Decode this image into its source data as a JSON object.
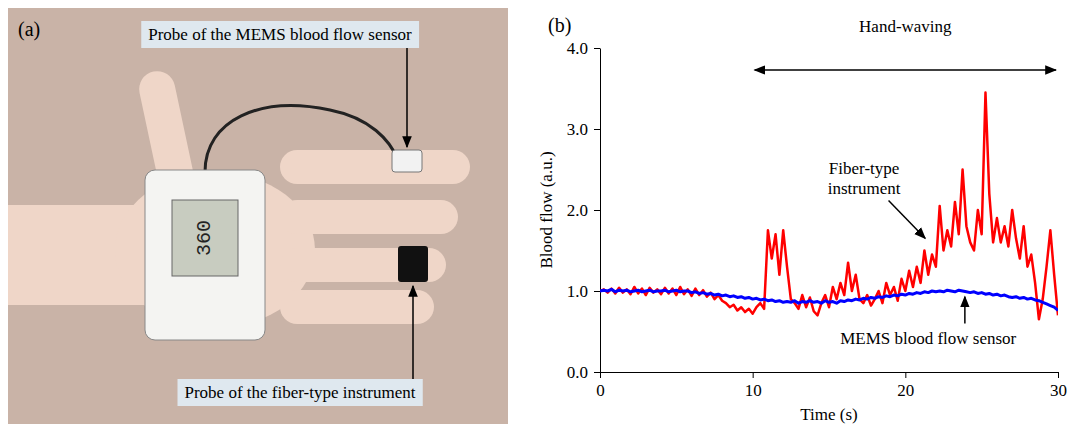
{
  "panel_a": {
    "label": "(a)",
    "display": "360",
    "callouts": [
      "Probe of the MEMS blood flow sensor",
      "Probe of the fiber-type instrument"
    ]
  },
  "chart_data": {
    "type": "line",
    "panel_label": "(b)",
    "x_label": "Time (s)",
    "y_label": "Blood flow (a.u.)",
    "xlim": [
      0,
      30
    ],
    "xticks": [
      0,
      10,
      20,
      30
    ],
    "ylim": [
      0,
      4
    ],
    "yticks": [
      {
        "value": 0,
        "label": "0.0"
      },
      {
        "value": 1,
        "label": "1.0"
      },
      {
        "value": 2,
        "label": "2.0"
      },
      {
        "value": 3,
        "label": "3.0"
      },
      {
        "value": 4,
        "label": "4.0"
      }
    ],
    "annotations": [
      {
        "text": "Hand-waving",
        "x": [
          10,
          30
        ]
      }
    ],
    "x": [
      0,
      0.25,
      0.5,
      0.75,
      1,
      1.25,
      1.5,
      1.75,
      2,
      2.25,
      2.5,
      2.75,
      3,
      3.25,
      3.5,
      3.75,
      4,
      4.25,
      4.5,
      4.75,
      5,
      5.25,
      5.5,
      5.75,
      6,
      6.25,
      6.5,
      6.75,
      7,
      7.25,
      7.5,
      7.75,
      8,
      8.25,
      8.5,
      8.75,
      9,
      9.25,
      9.5,
      9.75,
      10,
      10.25,
      10.5,
      10.75,
      11,
      11.25,
      11.5,
      11.75,
      12,
      12.25,
      12.5,
      12.75,
      13,
      13.25,
      13.5,
      13.75,
      14,
      14.25,
      14.5,
      14.75,
      15,
      15.25,
      15.5,
      15.75,
      16,
      16.25,
      16.5,
      16.75,
      17,
      17.25,
      17.5,
      17.75,
      18,
      18.25,
      18.5,
      18.75,
      19,
      19.25,
      19.5,
      19.75,
      20,
      20.25,
      20.5,
      20.75,
      21,
      21.25,
      21.5,
      21.75,
      22,
      22.25,
      22.5,
      22.75,
      23,
      23.25,
      23.5,
      23.75,
      24,
      24.25,
      24.5,
      24.75,
      25,
      25.25,
      25.5,
      25.75,
      26,
      26.25,
      26.5,
      26.75,
      27,
      27.25,
      27.5,
      27.75,
      28,
      28.25,
      28.5,
      28.75,
      29,
      29.25,
      29.5,
      29.75,
      30
    ],
    "series": [
      {
        "name": "Fiber-type instrument",
        "color": "#ff0000",
        "values": [
          1.0,
          1.02,
          0.98,
          1.03,
          0.97,
          1.04,
          0.98,
          1.02,
          0.96,
          1.05,
          0.97,
          1.03,
          0.95,
          1.04,
          0.98,
          1.02,
          0.96,
          1.04,
          0.97,
          1.03,
          0.95,
          1.05,
          0.96,
          1.02,
          0.94,
          1.03,
          0.95,
          1.01,
          0.93,
          0.98,
          0.9,
          0.95,
          0.88,
          0.85,
          0.8,
          0.83,
          0.76,
          0.8,
          0.74,
          0.78,
          0.72,
          0.8,
          0.85,
          0.78,
          1.75,
          1.4,
          1.7,
          1.2,
          1.75,
          1.3,
          0.9,
          0.85,
          0.78,
          0.95,
          0.8,
          0.92,
          0.75,
          0.7,
          0.85,
          0.95,
          0.8,
          1.05,
          0.9,
          1.1,
          0.95,
          1.35,
          1.0,
          1.2,
          0.9,
          0.85,
          0.95,
          0.82,
          0.9,
          1.0,
          0.85,
          1.1,
          0.95,
          1.05,
          0.88,
          1.15,
          1.0,
          1.25,
          1.05,
          1.3,
          1.1,
          1.5,
          1.2,
          1.45,
          1.3,
          2.05,
          1.5,
          1.75,
          1.55,
          2.1,
          1.7,
          2.5,
          1.8,
          1.6,
          1.5,
          2.0,
          1.7,
          3.45,
          2.2,
          1.6,
          1.9,
          1.6,
          1.8,
          1.55,
          2.0,
          1.65,
          1.4,
          1.8,
          1.3,
          1.45,
          1.1,
          0.65,
          0.9,
          1.3,
          1.75,
          1.2,
          0.7
        ]
      },
      {
        "name": "MEMS blood flow sensor",
        "color": "#0000ff",
        "values": [
          1.0,
          1.01,
          1.0,
          1.02,
          0.99,
          1.01,
          1.0,
          1.01,
          0.99,
          1.0,
          1.01,
          0.99,
          1.0,
          1.01,
          0.99,
          1.0,
          1.0,
          1.01,
          0.99,
          1.0,
          1.01,
          0.99,
          1.0,
          1.0,
          0.98,
          0.99,
          0.97,
          0.98,
          0.96,
          0.97,
          0.95,
          0.96,
          0.94,
          0.95,
          0.93,
          0.94,
          0.92,
          0.93,
          0.91,
          0.92,
          0.9,
          0.91,
          0.89,
          0.9,
          0.88,
          0.89,
          0.87,
          0.88,
          0.86,
          0.87,
          0.86,
          0.88,
          0.85,
          0.87,
          0.86,
          0.88,
          0.86,
          0.87,
          0.85,
          0.88,
          0.86,
          0.87,
          0.85,
          0.88,
          0.87,
          0.89,
          0.88,
          0.9,
          0.89,
          0.91,
          0.9,
          0.92,
          0.91,
          0.93,
          0.92,
          0.94,
          0.93,
          0.95,
          0.94,
          0.96,
          0.95,
          0.97,
          0.96,
          0.98,
          0.97,
          0.99,
          0.98,
          1.0,
          0.99,
          1.0,
          0.99,
          1.01,
          1.0,
          0.99,
          1.01,
          1.0,
          0.99,
          0.98,
          0.99,
          0.97,
          0.98,
          0.96,
          0.97,
          0.95,
          0.96,
          0.94,
          0.95,
          0.93,
          0.92,
          0.93,
          0.91,
          0.92,
          0.9,
          0.91,
          0.89,
          0.88,
          0.86,
          0.84,
          0.82,
          0.8,
          0.76
        ]
      }
    ]
  }
}
